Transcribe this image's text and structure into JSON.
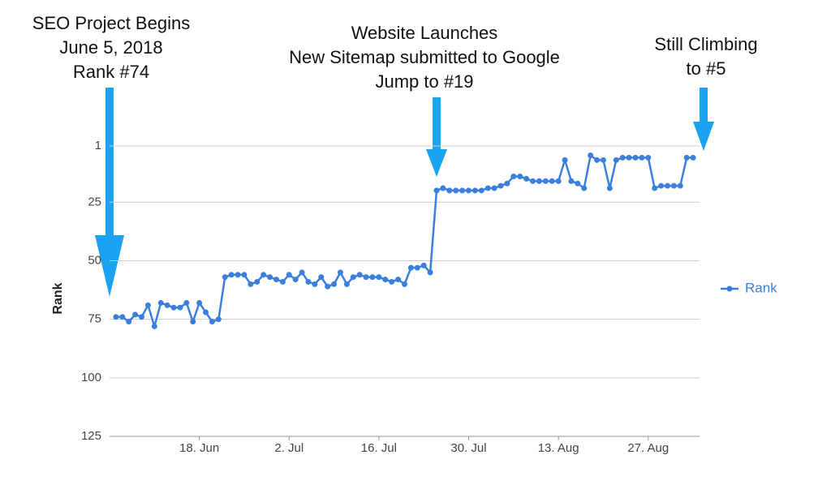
{
  "chart_data": {
    "type": "line",
    "ylabel": "Rank",
    "ylim": [
      1,
      125
    ],
    "y_inverted": true,
    "yticks": [
      1,
      25,
      50,
      75,
      100,
      125
    ],
    "grid": true,
    "legend": "right",
    "xlim": [
      "2018-06-04",
      "2018-09-04"
    ],
    "xticks": [
      {
        "value": "2018-06-18",
        "label": "18. Jun"
      },
      {
        "value": "2018-07-02",
        "label": "2. Jul"
      },
      {
        "value": "2018-07-16",
        "label": "16. Jul"
      },
      {
        "value": "2018-07-30",
        "label": "30. Jul"
      },
      {
        "value": "2018-08-13",
        "label": "13. Aug"
      },
      {
        "value": "2018-08-27",
        "label": "27. Aug"
      }
    ],
    "x": [
      "2018-06-05",
      "2018-06-06",
      "2018-06-07",
      "2018-06-08",
      "2018-06-09",
      "2018-06-10",
      "2018-06-11",
      "2018-06-12",
      "2018-06-13",
      "2018-06-14",
      "2018-06-15",
      "2018-06-16",
      "2018-06-17",
      "2018-06-18",
      "2018-06-19",
      "2018-06-20",
      "2018-06-21",
      "2018-06-22",
      "2018-06-23",
      "2018-06-24",
      "2018-06-25",
      "2018-06-26",
      "2018-06-27",
      "2018-06-28",
      "2018-06-29",
      "2018-06-30",
      "2018-07-01",
      "2018-07-02",
      "2018-07-03",
      "2018-07-04",
      "2018-07-05",
      "2018-07-06",
      "2018-07-07",
      "2018-07-08",
      "2018-07-09",
      "2018-07-10",
      "2018-07-11",
      "2018-07-12",
      "2018-07-13",
      "2018-07-14",
      "2018-07-15",
      "2018-07-16",
      "2018-07-17",
      "2018-07-18",
      "2018-07-19",
      "2018-07-20",
      "2018-07-21",
      "2018-07-22",
      "2018-07-23",
      "2018-07-24",
      "2018-07-25",
      "2018-07-26",
      "2018-07-27",
      "2018-07-28",
      "2018-07-29",
      "2018-07-30",
      "2018-07-31",
      "2018-08-01",
      "2018-08-02",
      "2018-08-03",
      "2018-08-04",
      "2018-08-05",
      "2018-08-06",
      "2018-08-07",
      "2018-08-08",
      "2018-08-09",
      "2018-08-10",
      "2018-08-11",
      "2018-08-12",
      "2018-08-13",
      "2018-08-14",
      "2018-08-15",
      "2018-08-16",
      "2018-08-17",
      "2018-08-18",
      "2018-08-19",
      "2018-08-20",
      "2018-08-21",
      "2018-08-22",
      "2018-08-23",
      "2018-08-24",
      "2018-08-25",
      "2018-08-26",
      "2018-08-27",
      "2018-08-28",
      "2018-08-29",
      "2018-08-30",
      "2018-08-31",
      "2018-09-01",
      "2018-09-02",
      "2018-09-03"
    ],
    "series": [
      {
        "name": "Rank",
        "color": "#3b7fdc",
        "values": [
          74,
          74,
          76,
          73,
          74,
          69,
          78,
          68,
          69,
          70,
          70,
          68,
          76,
          68,
          72,
          76,
          75,
          57,
          56,
          56,
          56,
          60,
          59,
          56,
          57,
          58,
          59,
          56,
          58,
          55,
          59,
          60,
          57,
          61,
          60,
          55,
          60,
          57,
          56,
          57,
          57,
          57,
          58,
          59,
          58,
          60,
          53,
          53,
          52,
          55,
          20,
          19,
          20,
          20,
          20,
          20,
          20,
          20,
          19,
          19,
          18,
          17,
          14,
          14,
          15,
          16,
          16,
          16,
          16,
          16,
          7,
          16,
          17,
          19,
          5,
          7,
          7,
          19,
          7,
          6,
          6,
          6,
          6,
          6,
          19,
          18,
          18,
          18,
          18,
          6,
          6
        ]
      }
    ],
    "annotations": [
      {
        "lines": [
          "SEO Project Begins",
          "June 5, 2018",
          "Rank #74"
        ]
      },
      {
        "lines": [
          "Website Launches",
          "New Sitemap submitted to Google",
          "Jump to #19"
        ]
      },
      {
        "lines": [
          "Still Climbing",
          "to #5"
        ]
      }
    ]
  }
}
